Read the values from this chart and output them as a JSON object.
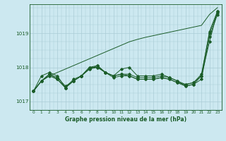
{
  "bg_color": "#cce8f0",
  "grid_color": "#aaccd6",
  "line_color": "#1a5c28",
  "title": "Graphe pression niveau de la mer (hPa)",
  "ylabel_ticks": [
    1017,
    1018,
    1019
  ],
  "xlim": [
    -0.5,
    23.5
  ],
  "ylim": [
    1016.75,
    1019.85
  ],
  "x": [
    0,
    1,
    2,
    3,
    4,
    5,
    6,
    7,
    8,
    9,
    10,
    11,
    12,
    13,
    14,
    15,
    16,
    17,
    18,
    19,
    20,
    21,
    22,
    23
  ],
  "line_straight": [
    1017.3,
    1017.6,
    1017.75,
    1017.85,
    1017.95,
    1018.05,
    1018.15,
    1018.25,
    1018.35,
    1018.45,
    1018.55,
    1018.65,
    1018.75,
    1018.82,
    1018.88,
    1018.93,
    1018.98,
    1019.03,
    1019.08,
    1019.13,
    1019.18,
    1019.23,
    1019.55,
    1019.75
  ],
  "line_a": [
    1017.3,
    1017.75,
    1017.85,
    1017.75,
    1017.4,
    1017.65,
    1017.75,
    1018.0,
    1018.0,
    1017.85,
    1017.75,
    1017.8,
    1017.75,
    1017.65,
    1017.65,
    1017.65,
    1017.7,
    1017.65,
    1017.55,
    1017.5,
    1017.55,
    1017.75,
    1019.05,
    1019.65
  ],
  "line_b": [
    1017.3,
    1017.6,
    1017.75,
    1017.65,
    1017.4,
    1017.6,
    1017.75,
    1017.95,
    1018.05,
    1017.85,
    1017.75,
    1017.95,
    1018.0,
    1017.75,
    1017.75,
    1017.75,
    1017.8,
    1017.7,
    1017.6,
    1017.45,
    1017.5,
    1017.75,
    1018.75,
    1019.65
  ],
  "line_c": [
    1017.3,
    1017.6,
    1017.8,
    1017.65,
    1017.4,
    1017.6,
    1017.75,
    1017.95,
    1018.0,
    1017.85,
    1017.7,
    1017.75,
    1017.75,
    1017.65,
    1017.65,
    1017.65,
    1017.7,
    1017.65,
    1017.55,
    1017.45,
    1017.5,
    1017.65,
    1018.9,
    1019.55
  ],
  "line_d": [
    1017.3,
    1017.6,
    1017.8,
    1017.7,
    1017.45,
    1017.6,
    1017.75,
    1018.0,
    1018.05,
    1017.85,
    1017.75,
    1017.8,
    1017.8,
    1017.7,
    1017.7,
    1017.7,
    1017.75,
    1017.7,
    1017.6,
    1017.5,
    1017.55,
    1017.8,
    1019.0,
    1019.6
  ]
}
